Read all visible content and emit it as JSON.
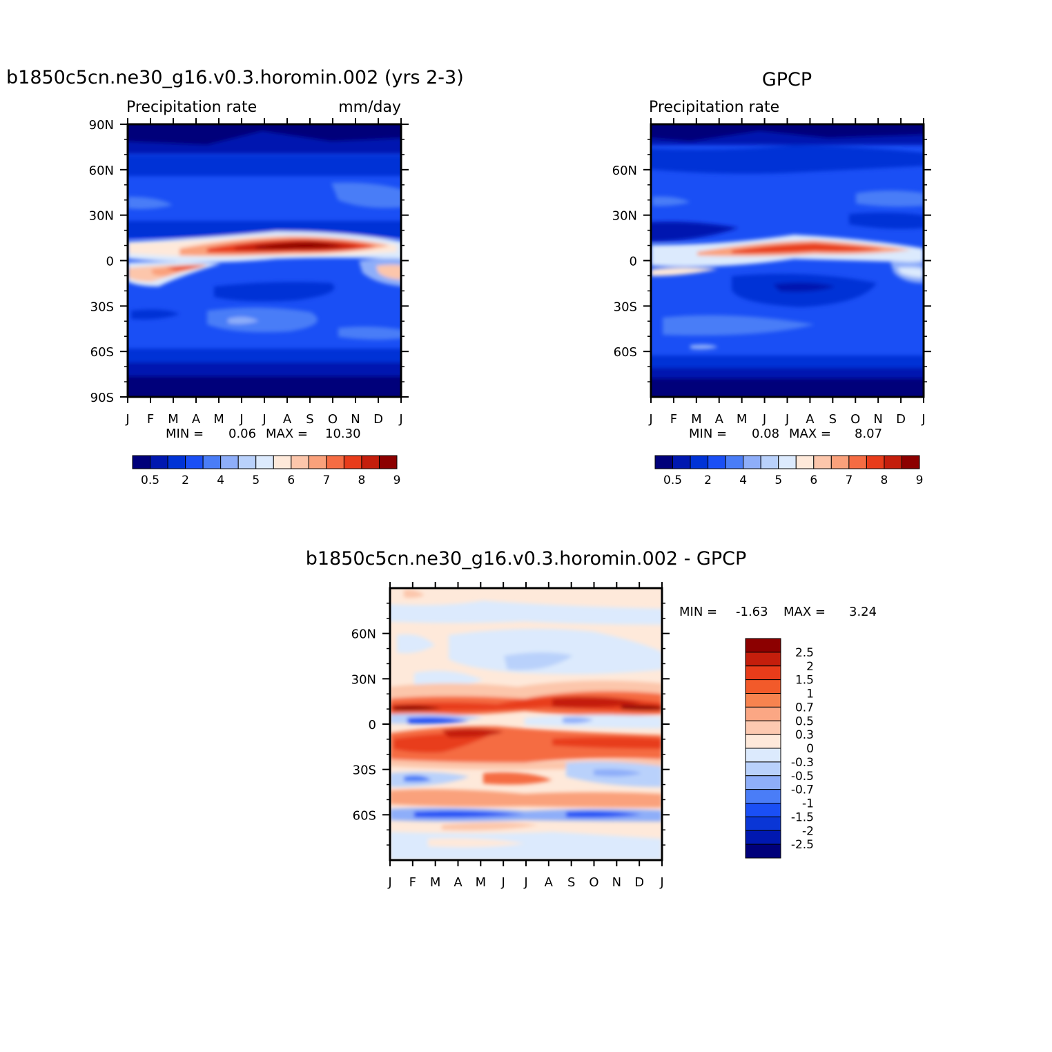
{
  "chart_data": [
    {
      "type": "heatmap",
      "title": "b1850c5cn.ne30_g16.v0.3.horomin.002 (yrs 2-3)",
      "left_label": "Precipitation rate",
      "right_label": "mm/day",
      "x_tick_labels": [
        "J",
        "F",
        "M",
        "A",
        "M",
        "J",
        "J",
        "A",
        "S",
        "O",
        "N",
        "D",
        "J"
      ],
      "y_tick_labels": [
        "90N",
        "60N",
        "30N",
        "0",
        "30S",
        "60S",
        "90S"
      ],
      "ylim": [
        -90,
        90
      ],
      "stats": {
        "min_label": "MIN =",
        "min": "0.06",
        "max_label": "MAX =",
        "max": "10.30"
      },
      "colorbar": {
        "levels_shown": [
          "0.5",
          "2",
          "4",
          "5",
          "6",
          "7",
          "8",
          "9"
        ],
        "colors": [
          "#00007a",
          "#0018b0",
          "#0033d6",
          "#1a4ff5",
          "#4a7df7",
          "#8eaef9",
          "#b9d1fb",
          "#dceafd",
          "#fee9da",
          "#fcc6ab",
          "#faa17b",
          "#f56c43",
          "#e83c1a",
          "#c41e0c",
          "#8c0000"
        ]
      }
    },
    {
      "type": "heatmap",
      "title": "GPCP",
      "left_label": "Precipitation rate",
      "x_tick_labels": [
        "J",
        "F",
        "M",
        "A",
        "M",
        "J",
        "J",
        "A",
        "S",
        "O",
        "N",
        "D",
        "J"
      ],
      "y_tick_labels": [
        "60N",
        "30N",
        "0",
        "30S",
        "60S"
      ],
      "ylim": [
        -90,
        90
      ],
      "stats": {
        "min_label": "MIN =",
        "min": "0.08",
        "max_label": "MAX =",
        "max": "8.07"
      },
      "colorbar": {
        "levels_shown": [
          "0.5",
          "2",
          "4",
          "5",
          "6",
          "7",
          "8",
          "9"
        ],
        "colors": [
          "#00007a",
          "#0018b0",
          "#0033d6",
          "#1a4ff5",
          "#4a7df7",
          "#8eaef9",
          "#b9d1fb",
          "#dceafd",
          "#fee9da",
          "#fcc6ab",
          "#faa17b",
          "#f56c43",
          "#e83c1a",
          "#c41e0c",
          "#8c0000"
        ]
      }
    },
    {
      "type": "heatmap",
      "title": "b1850c5cn.ne30_g16.v0.3.horomin.002 - GPCP",
      "x_tick_labels": [
        "J",
        "F",
        "M",
        "A",
        "M",
        "J",
        "J",
        "A",
        "S",
        "O",
        "N",
        "D",
        "J"
      ],
      "y_tick_labels": [
        "60N",
        "30N",
        "0",
        "30S",
        "60S"
      ],
      "ylim": [
        -90,
        90
      ],
      "stats": {
        "min_label": "MIN =",
        "min": "-1.63",
        "max_label": "MAX =",
        "max": "3.24"
      },
      "colorbar": {
        "levels_shown": [
          "2.5",
          "2",
          "1.5",
          "1",
          "0.7",
          "0.5",
          "0.3",
          "0",
          "-0.3",
          "-0.5",
          "-0.7",
          "-1",
          "-1.5",
          "-2",
          "-2.5"
        ],
        "colors": [
          "#8c0000",
          "#c41e0c",
          "#e83c1a",
          "#f25a2a",
          "#f7834f",
          "#fba784",
          "#fdc9b0",
          "#fee9da",
          "#dceafd",
          "#b9d1fb",
          "#8eaef9",
          "#4a7df7",
          "#1a4ff5",
          "#0a36d6",
          "#0018b0",
          "#00007a"
        ]
      }
    }
  ]
}
